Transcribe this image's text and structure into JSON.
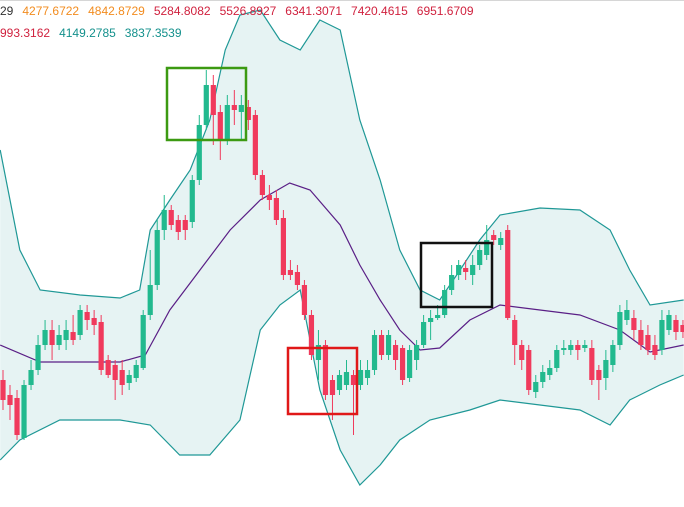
{
  "header": {
    "line1": [
      {
        "text": "29",
        "color": "#333333"
      },
      {
        "text": "4277.6722",
        "color": "#f28c1f"
      },
      {
        "text": "4842.8729",
        "color": "#f28c1f"
      },
      {
        "text": "5284.8082",
        "color": "#d0213e"
      },
      {
        "text": "5526.8927",
        "color": "#d0213e"
      },
      {
        "text": "6341.3071",
        "color": "#d0213e"
      },
      {
        "text": "7420.4615",
        "color": "#d0213e"
      },
      {
        "text": "6951.6709",
        "color": "#d0213e"
      }
    ],
    "line2": [
      {
        "text": "993.3162",
        "color": "#d0213e"
      },
      {
        "text": "4149.2785",
        "color": "#13908c"
      },
      {
        "text": "3837.3539",
        "color": "#13908c"
      }
    ]
  },
  "chart_data": {
    "type": "candlestick",
    "ylim": [
      0,
      507
    ],
    "up_color": "#22b98e",
    "down_color": "#f03a5c",
    "open": [
      127,
      112,
      109,
      69,
      122,
      137,
      162,
      177,
      162,
      167,
      175,
      172,
      195,
      189,
      185,
      147,
      142,
      137,
      124,
      129,
      139,
      192,
      222,
      277,
      297,
      287,
      287,
      285,
      327,
      382,
      422,
      395,
      367,
      402,
      395,
      400,
      392,
      332,
      312,
      309,
      289,
      237,
      235,
      222,
      192,
      147,
      162,
      127,
      117,
      122,
      132,
      122,
      129,
      137,
      172,
      152,
      162,
      159,
      129,
      147,
      162,
      185,
      189,
      192,
      217,
      232,
      239,
      232,
      242,
      252,
      272,
      262,
      277,
      187,
      162,
      157,
      115,
      125,
      132,
      139,
      157,
      157,
      162,
      159,
      159,
      137,
      129,
      142,
      162,
      187,
      189,
      177,
      172,
      162,
      157,
      177,
      187,
      182
    ],
    "high": [
      137,
      122,
      117,
      127,
      147,
      172,
      187,
      187,
      182,
      187,
      192,
      202,
      202,
      197,
      192,
      152,
      147,
      147,
      137,
      147,
      197,
      257,
      287,
      312,
      302,
      292,
      292,
      332,
      392,
      437,
      432,
      402,
      412,
      417,
      412,
      407,
      397,
      337,
      322,
      317,
      297,
      247,
      242,
      227,
      197,
      177,
      167,
      132,
      137,
      147,
      137,
      147,
      147,
      177,
      177,
      177,
      167,
      162,
      162,
      167,
      192,
      197,
      202,
      222,
      242,
      247,
      247,
      252,
      262,
      282,
      277,
      275,
      282,
      192,
      167,
      162,
      132,
      142,
      147,
      162,
      167,
      167,
      167,
      167,
      167,
      142,
      157,
      167,
      202,
      207,
      197,
      187,
      182,
      172,
      197,
      197,
      192,
      187
    ],
    "low": [
      97,
      87,
      67,
      67,
      117,
      132,
      157,
      147,
      157,
      157,
      162,
      167,
      177,
      172,
      132,
      129,
      107,
      112,
      117,
      125,
      137,
      187,
      217,
      267,
      277,
      267,
      267,
      279,
      322,
      377,
      362,
      347,
      362,
      382,
      367,
      377,
      327,
      307,
      297,
      282,
      227,
      227,
      217,
      187,
      147,
      127,
      107,
      87,
      112,
      117,
      72,
      117,
      122,
      132,
      147,
      147,
      137,
      122,
      125,
      137,
      159,
      167,
      187,
      189,
      212,
      227,
      227,
      222,
      237,
      247,
      262,
      257,
      187,
      142,
      137,
      112,
      109,
      119,
      127,
      135,
      152,
      152,
      147,
      155,
      122,
      107,
      117,
      135,
      157,
      182,
      167,
      157,
      152,
      147,
      152,
      172,
      167,
      169
    ],
    "close": [
      107,
      102,
      72,
      122,
      137,
      162,
      177,
      162,
      172,
      177,
      167,
      197,
      187,
      182,
      137,
      132,
      127,
      122,
      132,
      142,
      192,
      222,
      277,
      297,
      282,
      275,
      277,
      327,
      382,
      422,
      392,
      367,
      402,
      397,
      402,
      387,
      332,
      312,
      307,
      287,
      232,
      232,
      222,
      192,
      152,
      162,
      112,
      112,
      132,
      135,
      122,
      137,
      137,
      172,
      152,
      172,
      147,
      127,
      157,
      162,
      185,
      189,
      192,
      217,
      232,
      242,
      235,
      242,
      257,
      267,
      267,
      269,
      189,
      162,
      147,
      117,
      125,
      135,
      139,
      157,
      159,
      162,
      157,
      162,
      127,
      127,
      147,
      162,
      195,
      197,
      177,
      162,
      157,
      152,
      187,
      192,
      175,
      175
    ],
    "band_fill": "#e6f3f3",
    "bands": [
      {
        "color": "#1f9896",
        "x": [
          -0.4,
          2.4,
          5.3,
          11,
          16.7,
          19.5,
          21,
          23.8,
          26.7,
          29.5,
          31.7,
          33.8,
          36.7,
          39.5,
          42.4,
          45.2,
          48.1,
          50.9,
          53.8,
          56.6,
          59.5,
          62.3,
          65.2,
          68,
          70.9,
          76.6,
          82.3,
          86.6,
          89.4,
          92.3,
          97.1
        ],
        "values": [
          357,
          257,
          217,
          212,
          209,
          217,
          277,
          307,
          337,
          387,
          457,
          492,
          497,
          467,
          457,
          487,
          477,
          387,
          327,
          257,
          217,
          207,
          237,
          267,
          292,
          299,
          297,
          277,
          237,
          202,
          207
        ]
      },
      {
        "color": "#5a1f86",
        "x": [
          -0.4,
          5.3,
          11,
          16.7,
          20.3,
          23.8,
          28.1,
          32.4,
          36.7,
          40.9,
          43.8,
          48.1,
          50.9,
          53.8,
          56.6,
          59.5,
          62.3,
          66.6,
          70.9,
          76.6,
          82.3,
          88,
          92.3,
          97.1
        ],
        "values": [
          162,
          145,
          145,
          145,
          152,
          197,
          237,
          277,
          307,
          324,
          317,
          282,
          242,
          207,
          177,
          157,
          159,
          187,
          202,
          197,
          192,
          177,
          155,
          162
        ]
      },
      {
        "color": "#1f9896",
        "x": [
          -0.4,
          2.4,
          8.1,
          16.7,
          21,
          25.2,
          29.5,
          33.8,
          36.7,
          39.5,
          42.4,
          45.2,
          48.1,
          50.9,
          53.8,
          56.6,
          60.9,
          66.6,
          70.9,
          76.6,
          82.3,
          86.6,
          89.4,
          93.7,
          97.1
        ],
        "values": [
          47,
          67,
          87,
          87,
          82,
          52,
          52,
          87,
          177,
          202,
          217,
          117,
          57,
          22,
          42,
          67,
          87,
          97,
          107,
          102,
          97,
          82,
          107,
          122,
          132
        ]
      }
    ]
  }
}
